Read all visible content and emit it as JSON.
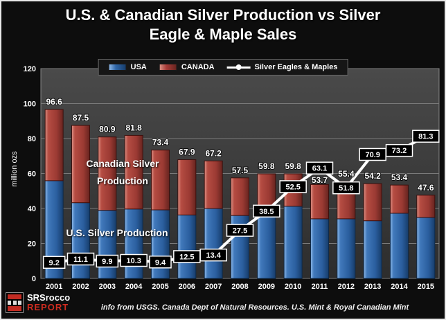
{
  "background_color": "#0d0d0d",
  "chart_data": {
    "type": "bar",
    "subtype": "stacked-bar-with-line-overlay",
    "title": "U.S. & Canadian Silver Production vs Silver Eagle & Maple Sales",
    "title_lines": [
      "U.S. & Canadian Silver Production vs Silver",
      "Eagle & Maple Sales"
    ],
    "ylabel": "million ozs",
    "xlabel": "",
    "ylim": [
      0,
      120
    ],
    "ytick_interval": 20,
    "grid": true,
    "legend_position": "top-center",
    "categories": [
      "2001",
      "2002",
      "2003",
      "2004",
      "2005",
      "2006",
      "2007",
      "2008",
      "2009",
      "2010",
      "2011",
      "2012",
      "2013",
      "2014",
      "2015"
    ],
    "series": [
      {
        "name": "USA",
        "type": "bar",
        "stack": "production",
        "color": "#2f66a8",
        "values": [
          55.9,
          43.3,
          39.0,
          39.7,
          39.2,
          36.3,
          40.0,
          36.0,
          37.5,
          41.3,
          34.1,
          34.1,
          33.0,
          37.3,
          34.9
        ]
      },
      {
        "name": "CANADA",
        "type": "bar",
        "stack": "production",
        "color": "#a83c38",
        "values": [
          40.7,
          44.2,
          41.9,
          42.1,
          34.2,
          31.6,
          27.2,
          21.5,
          22.3,
          18.5,
          19.6,
          21.3,
          21.2,
          16.1,
          12.7
        ]
      },
      {
        "name": "Silver Eagles & Maples",
        "type": "line",
        "color": "#ffffff",
        "values": [
          9.2,
          11.1,
          9.9,
          10.3,
          9.4,
          12.5,
          13.4,
          27.5,
          38.5,
          52.5,
          63.1,
          51.8,
          70.9,
          73.2,
          81.3
        ]
      }
    ],
    "stack_total_labels": [
      96.6,
      87.5,
      80.9,
      81.8,
      73.4,
      67.9,
      67.2,
      57.5,
      59.8,
      59.8,
      53.7,
      55.4,
      54.2,
      53.4,
      47.6
    ],
    "annotations": [
      {
        "text": "Canadian Silver Production"
      },
      {
        "text": "U.S. Silver Production"
      }
    ]
  },
  "footer": {
    "brand_line1": "SRSrocco",
    "brand_line2": "REPORT",
    "source": "info from USGS. Canada Dept of Natural Resources. U.S. Mint & Royal Canadian Mint"
  }
}
